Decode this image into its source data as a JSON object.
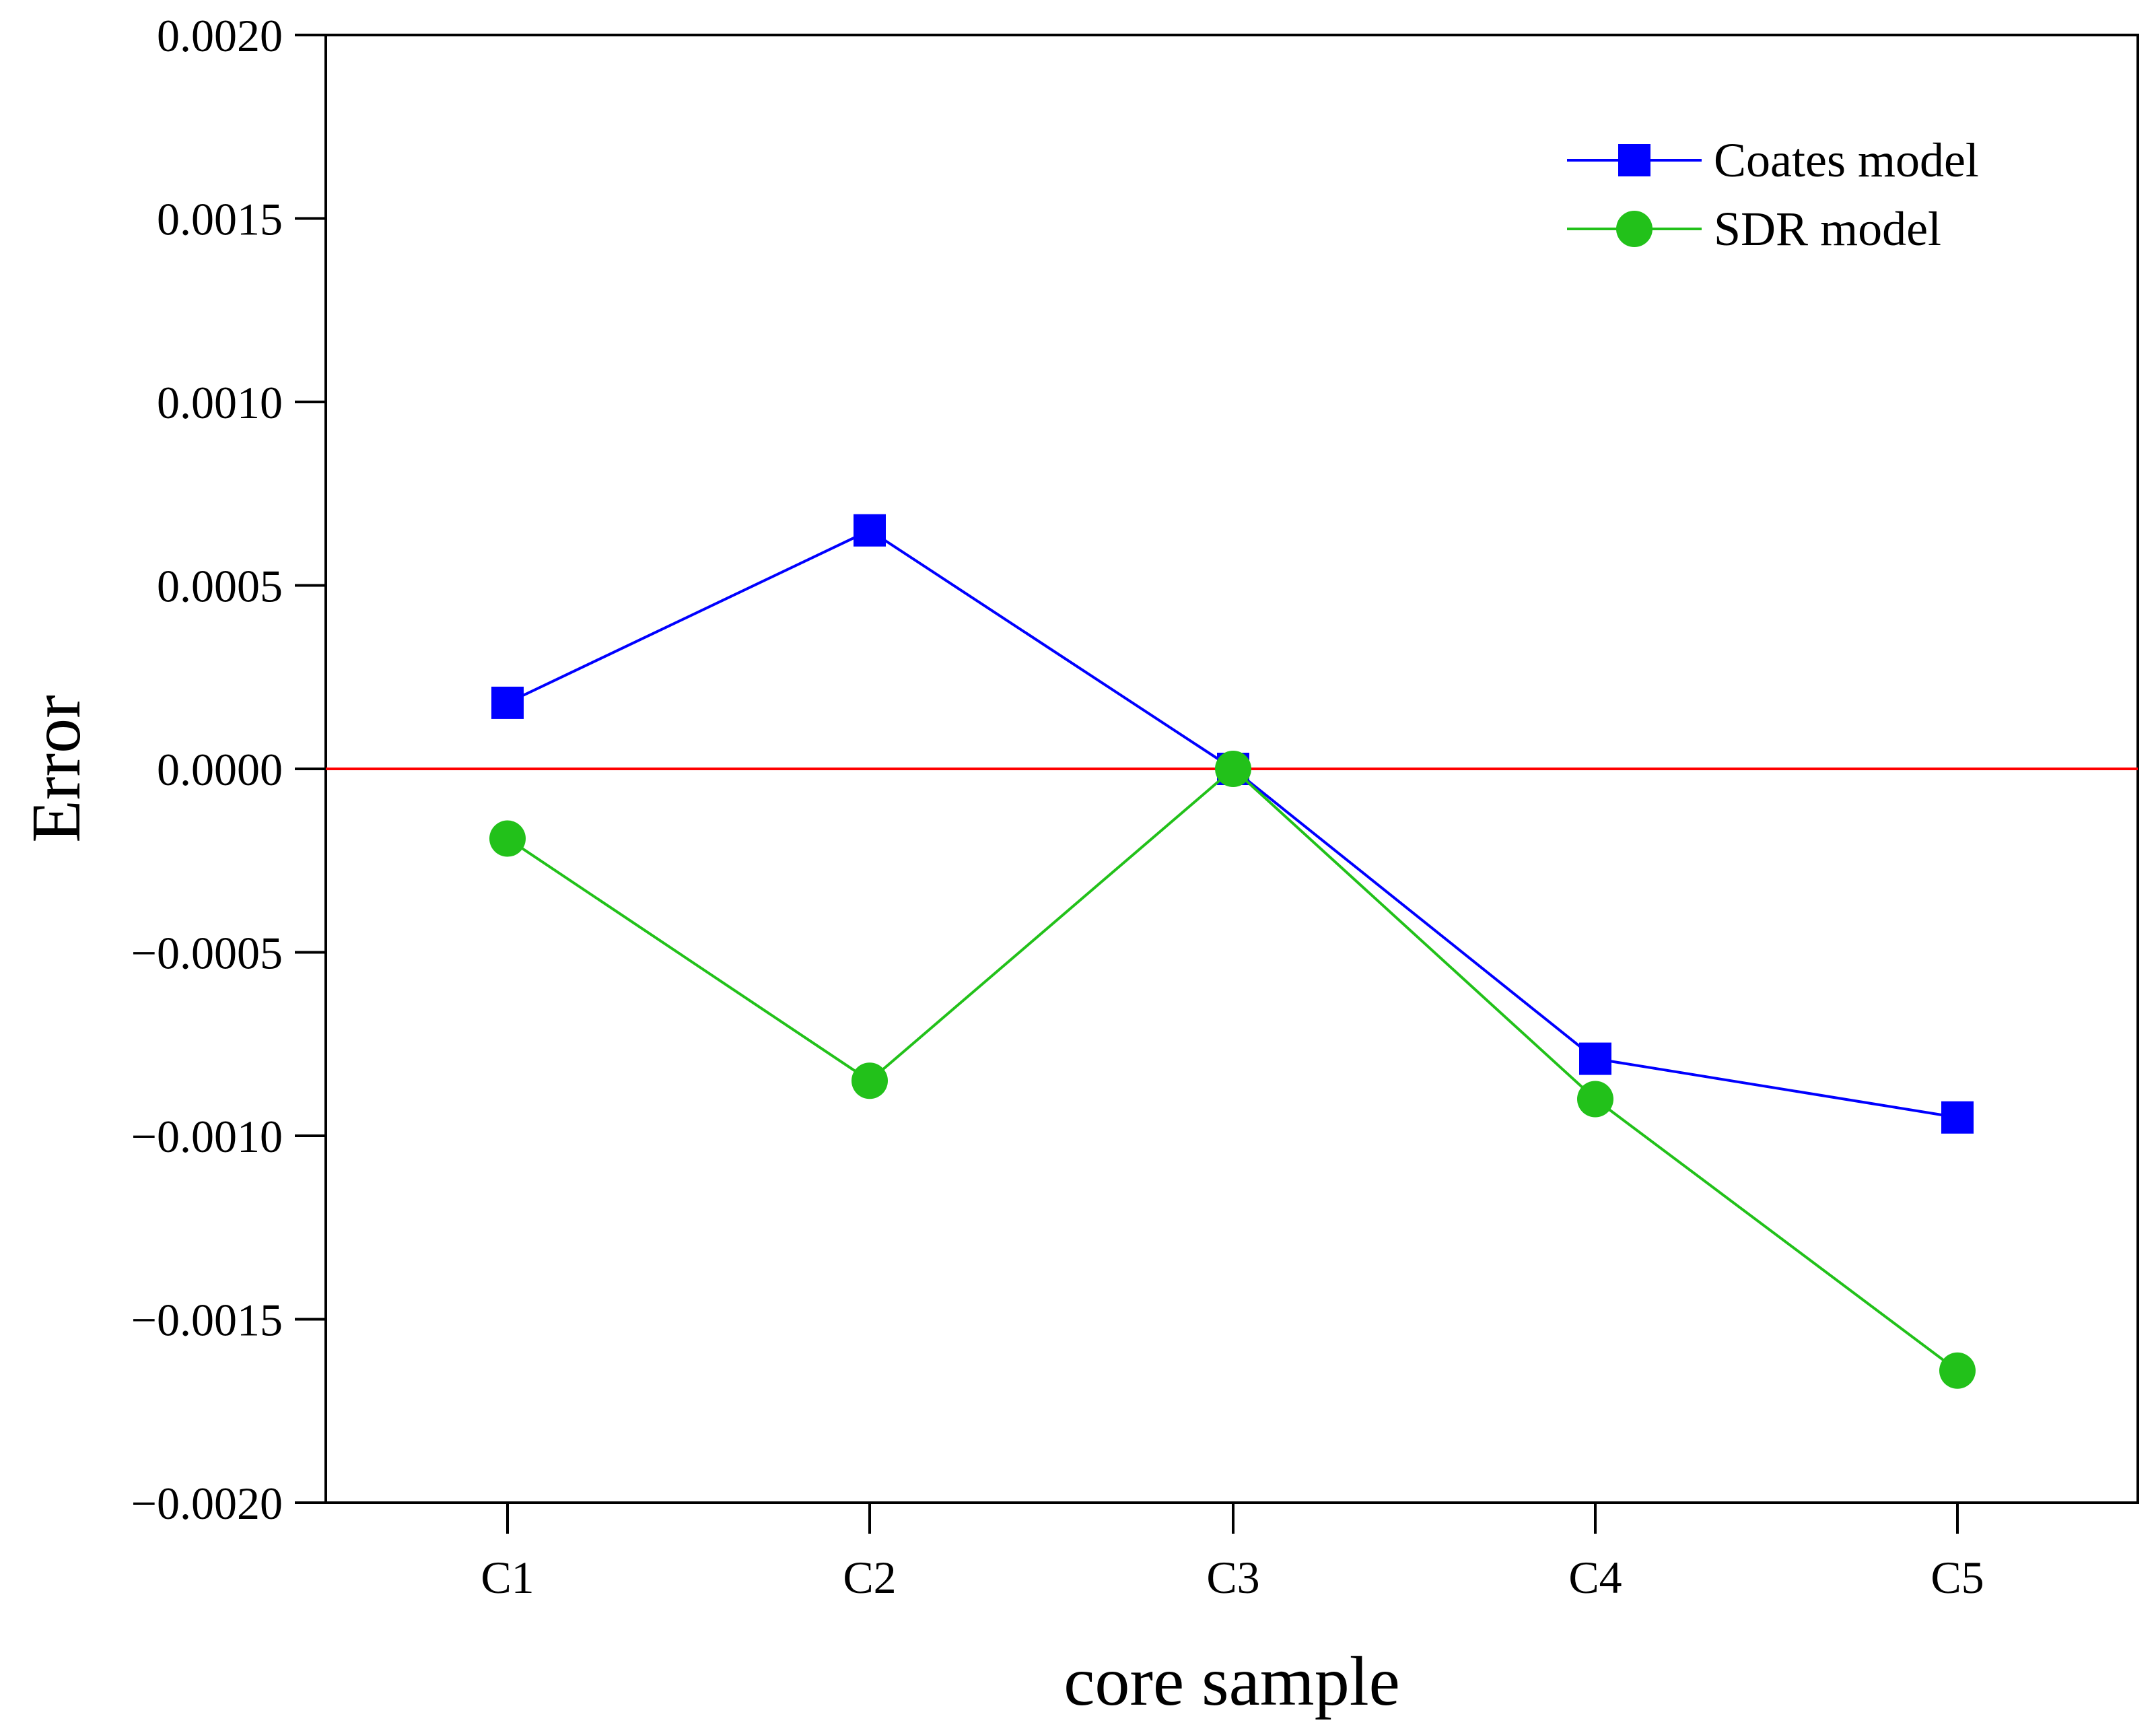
{
  "chart_data": {
    "type": "line",
    "title": "",
    "xlabel": "core sample",
    "ylabel": "Error",
    "categories": [
      "C1",
      "C2",
      "C3",
      "C4",
      "C5"
    ],
    "ylim": [
      -0.002,
      0.002
    ],
    "yticks": [
      0.002,
      0.0015,
      0.001,
      0.0005,
      0.0,
      -0.0005,
      -0.001,
      -0.0015,
      -0.002
    ],
    "ytick_labels": [
      "0.0020",
      "0.0015",
      "0.0010",
      "0.0005",
      "0.0000",
      "−0.0005",
      "−0.0010",
      "−0.0015",
      "−0.0020"
    ],
    "reference_line": {
      "y": 0.0,
      "color": "#ff0000"
    },
    "grid": false,
    "legend_position": "top-right",
    "series": [
      {
        "name": "Coates model",
        "marker": "square",
        "color": "#0000ff",
        "values": [
          0.00018,
          0.00065,
          0.0,
          -0.00079,
          -0.00095
        ]
      },
      {
        "name": "SDR model",
        "marker": "circle",
        "color": "#22c11a",
        "values": [
          -0.00019,
          -0.00085,
          0.0,
          -0.0009,
          -0.00164
        ]
      }
    ]
  }
}
